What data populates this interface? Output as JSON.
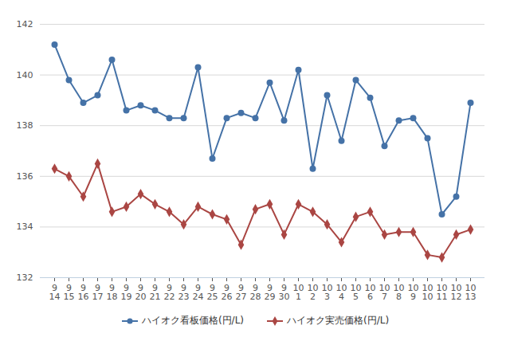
{
  "chart_data": {
    "type": "line",
    "categories": [
      "9\n14",
      "9\n15",
      "9\n16",
      "9\n17",
      "9\n18",
      "9\n19",
      "9\n20",
      "9\n21",
      "9\n22",
      "9\n23",
      "9\n24",
      "9\n25",
      "9\n26",
      "9\n27",
      "9\n28",
      "9\n29",
      "9\n30",
      "10\n1",
      "10\n2",
      "10\n3",
      "10\n4",
      "10\n5",
      "10\n6",
      "10\n7",
      "10\n8",
      "10\n9",
      "10\n10",
      "10\n11",
      "10\n12",
      "10\n13"
    ],
    "series": [
      {
        "name": "ハイオク看板価格(円/L)",
        "color": "#4572a7",
        "marker": "circle",
        "values": [
          141.2,
          139.8,
          138.9,
          139.2,
          140.6,
          138.6,
          138.8,
          138.6,
          138.3,
          138.3,
          140.3,
          136.7,
          138.3,
          138.5,
          138.3,
          139.7,
          138.2,
          140.2,
          136.3,
          139.2,
          137.4,
          139.8,
          139.1,
          137.2,
          138.2,
          138.3,
          137.5,
          134.5,
          135.2,
          138.9
        ]
      },
      {
        "name": "ハイオク実売価格(円/L)",
        "color": "#aa4643",
        "marker": "diamond",
        "values": [
          136.3,
          136.0,
          135.2,
          136.5,
          134.6,
          134.8,
          135.3,
          134.9,
          134.6,
          134.1,
          134.8,
          134.5,
          134.3,
          133.3,
          134.7,
          134.9,
          133.7,
          134.9,
          134.6,
          134.1,
          133.4,
          134.4,
          134.6,
          133.7,
          133.8,
          133.8,
          132.9,
          132.8,
          133.7,
          133.9
        ]
      }
    ],
    "ylim": [
      132,
      142
    ],
    "yticks": [
      132,
      134,
      136,
      138,
      140,
      142
    ],
    "grid": true,
    "legend": "bottom"
  }
}
